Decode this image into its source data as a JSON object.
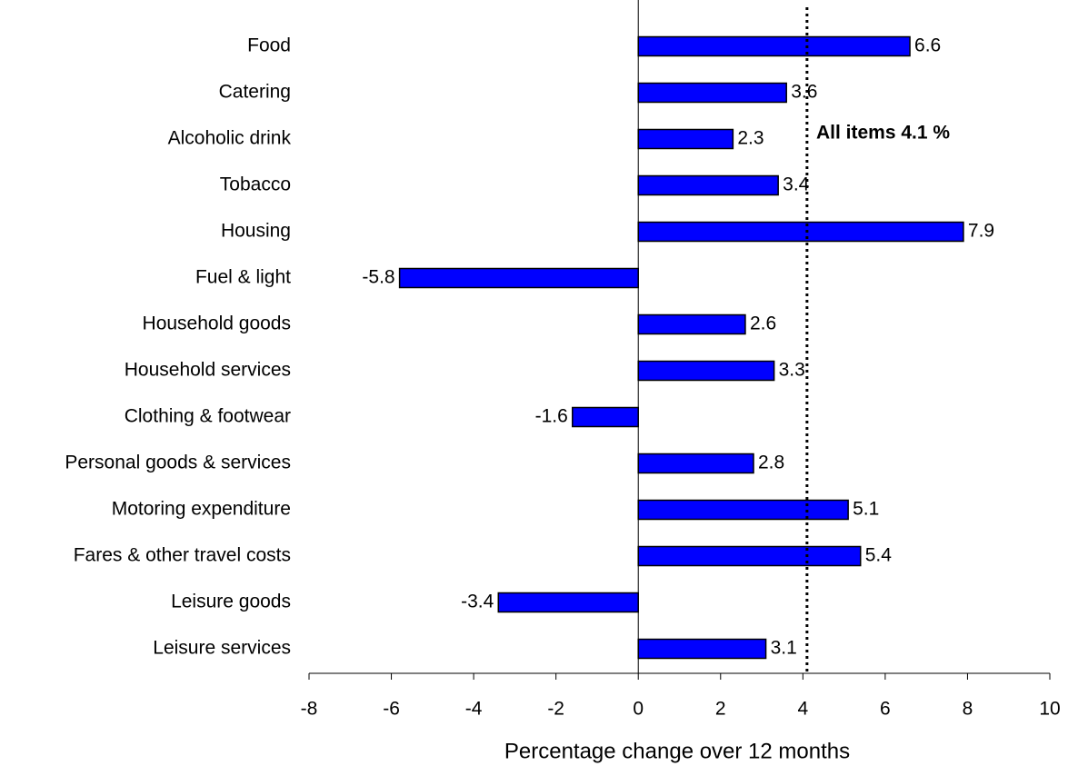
{
  "chart_data": {
    "type": "bar",
    "orientation": "horizontal",
    "x_label": "Percentage change over 12 months",
    "categories": [
      "Food",
      "Catering",
      "Alcoholic drink",
      "Tobacco",
      "Housing",
      "Fuel & light",
      "Household goods",
      "Household services",
      "Clothing & footwear",
      "Personal goods & services",
      "Motoring expenditure",
      "Fares & other travel costs",
      "Leisure goods",
      "Leisure services"
    ],
    "values": [
      6.6,
      3.6,
      2.3,
      3.4,
      7.9,
      -5.8,
      2.6,
      3.3,
      -1.6,
      2.8,
      5.1,
      5.4,
      -3.4,
      3.1
    ],
    "color": "#0000ff",
    "xlim": [
      -8,
      10
    ],
    "xticks": [
      -8,
      -6,
      -4,
      -2,
      0,
      2,
      4,
      6,
      8,
      10
    ],
    "reference_line": 4.1,
    "annotation": "All items 4.1 %"
  }
}
